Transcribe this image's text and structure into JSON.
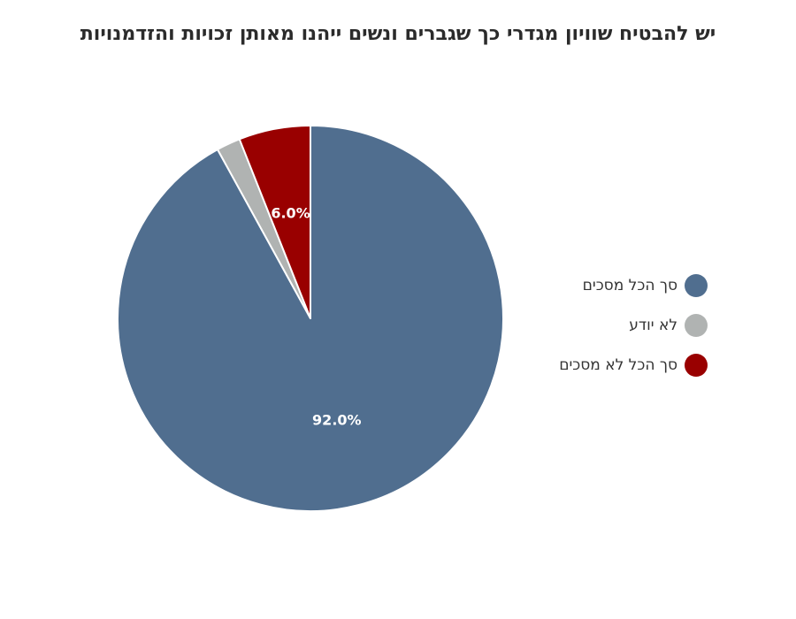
{
  "chart_data": {
    "type": "pie",
    "title": "יש להבטיח שוויון מגדרי כך שגברים ונשים ייהנו מאותן זכויות והזדמנויות",
    "slices": [
      {
        "label": "סך הכל מסכים",
        "value": 92.0,
        "color": "#506e8f",
        "data_label": "92.0%"
      },
      {
        "label": "לא יודע",
        "value": 2.0,
        "color": "#b0b3b2",
        "data_label": ""
      },
      {
        "label": "סך הכל לא מסכים",
        "value": 6.0,
        "color": "#990000",
        "data_label": "6.0%"
      }
    ],
    "legend_position": "right"
  }
}
